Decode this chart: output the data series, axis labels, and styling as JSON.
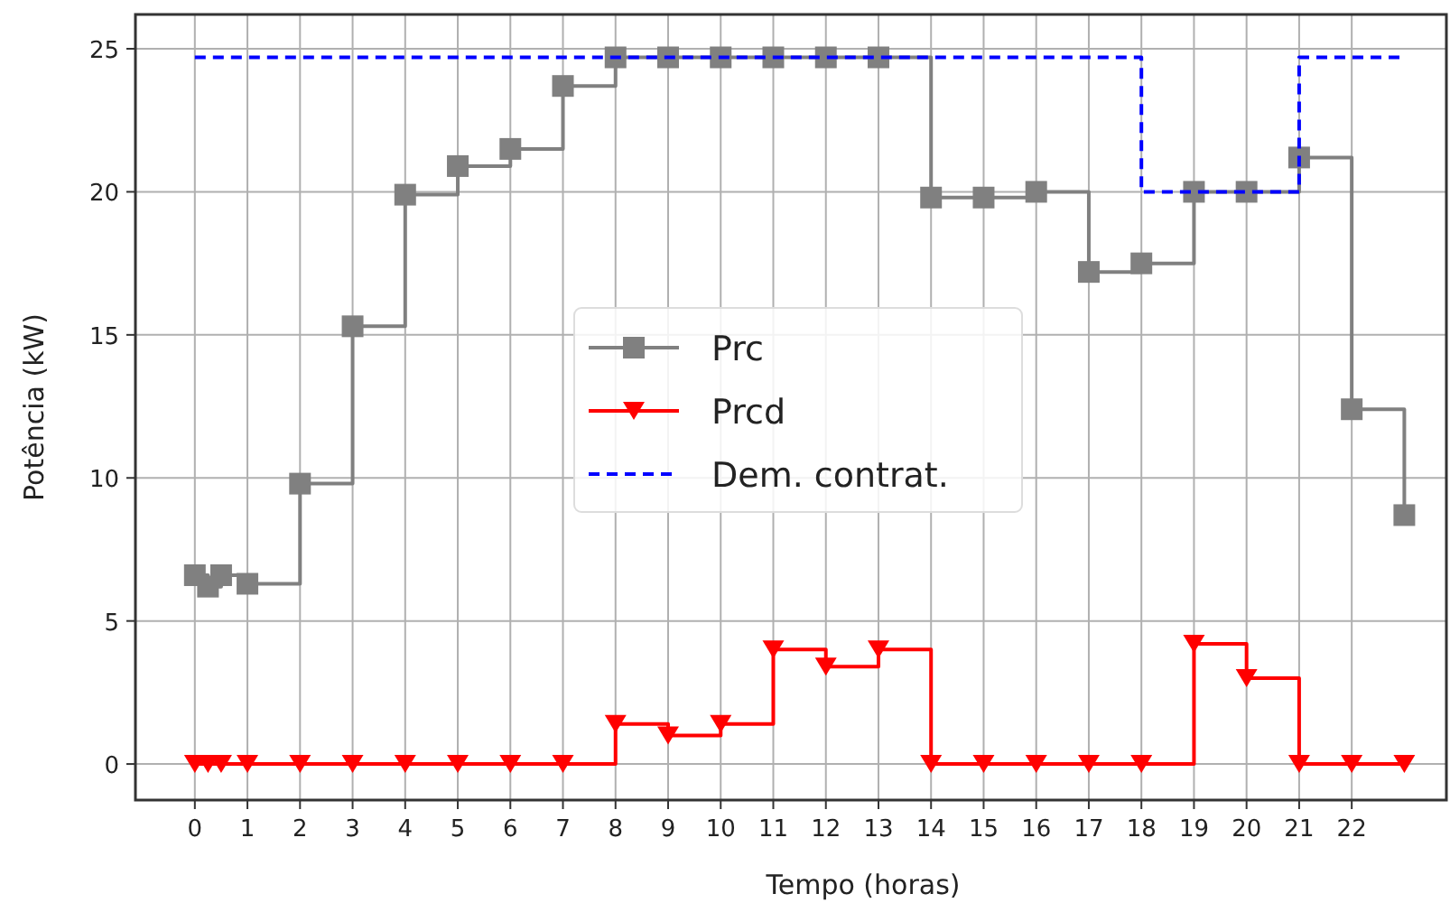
{
  "chart_data": {
    "type": "step",
    "xlabel": "Tempo (horas)",
    "ylabel": "Potência (kW)",
    "xlim": [
      -1.13,
      23.8
    ],
    "ylim": [
      -1.26,
      26.2
    ],
    "xticks": [
      0,
      1,
      2,
      3,
      4,
      5,
      6,
      7,
      8,
      9,
      10,
      11,
      12,
      13,
      14,
      15,
      16,
      17,
      18,
      19,
      20,
      21,
      22
    ],
    "yticks": [
      0,
      5,
      10,
      15,
      20,
      25
    ],
    "grid": true,
    "legend": "center",
    "series": [
      {
        "name": "Prc",
        "color": "#808080",
        "marker": "square",
        "line_style": "solid",
        "x": [
          0,
          0.25,
          0.5,
          1,
          2,
          3,
          4,
          5,
          6,
          7,
          8,
          9,
          10,
          11,
          12,
          13,
          14,
          15,
          16,
          17,
          18,
          19,
          20,
          21,
          22,
          23
        ],
        "values": [
          6.6,
          6.2,
          6.6,
          6.3,
          9.8,
          15.3,
          19.9,
          20.9,
          21.5,
          23.7,
          24.7,
          24.7,
          24.7,
          24.7,
          24.7,
          24.7,
          19.8,
          19.8,
          20.0,
          17.2,
          17.5,
          20.0,
          20.0,
          21.2,
          12.4,
          8.7
        ]
      },
      {
        "name": "Prcd",
        "color": "#ff0000",
        "marker": "triangle",
        "line_style": "solid",
        "x": [
          0,
          0.25,
          0.5,
          1,
          2,
          3,
          4,
          5,
          6,
          7,
          8,
          9,
          10,
          11,
          12,
          13,
          14,
          15,
          16,
          17,
          18,
          19,
          20,
          21,
          22,
          23
        ],
        "values": [
          0,
          0,
          0,
          0,
          0,
          0,
          0,
          0,
          0,
          0,
          1.4,
          1.0,
          1.4,
          4.0,
          3.4,
          4.0,
          0,
          0,
          0,
          0,
          0,
          4.2,
          3.0,
          0,
          0,
          0
        ]
      },
      {
        "name": "Dem. contrat.",
        "color": "#0000ff",
        "marker": "none",
        "line_style": "dashed",
        "x": [
          0,
          1,
          2,
          3,
          4,
          5,
          6,
          7,
          8,
          9,
          10,
          11,
          12,
          13,
          14,
          15,
          16,
          17,
          18,
          19,
          20,
          21,
          22,
          23
        ],
        "values": [
          24.7,
          24.7,
          24.7,
          24.7,
          24.7,
          24.7,
          24.7,
          24.7,
          24.7,
          24.7,
          24.7,
          24.7,
          24.7,
          24.7,
          24.7,
          24.7,
          24.7,
          24.7,
          20.0,
          20.0,
          20.0,
          24.7,
          24.7,
          24.7
        ]
      }
    ]
  }
}
